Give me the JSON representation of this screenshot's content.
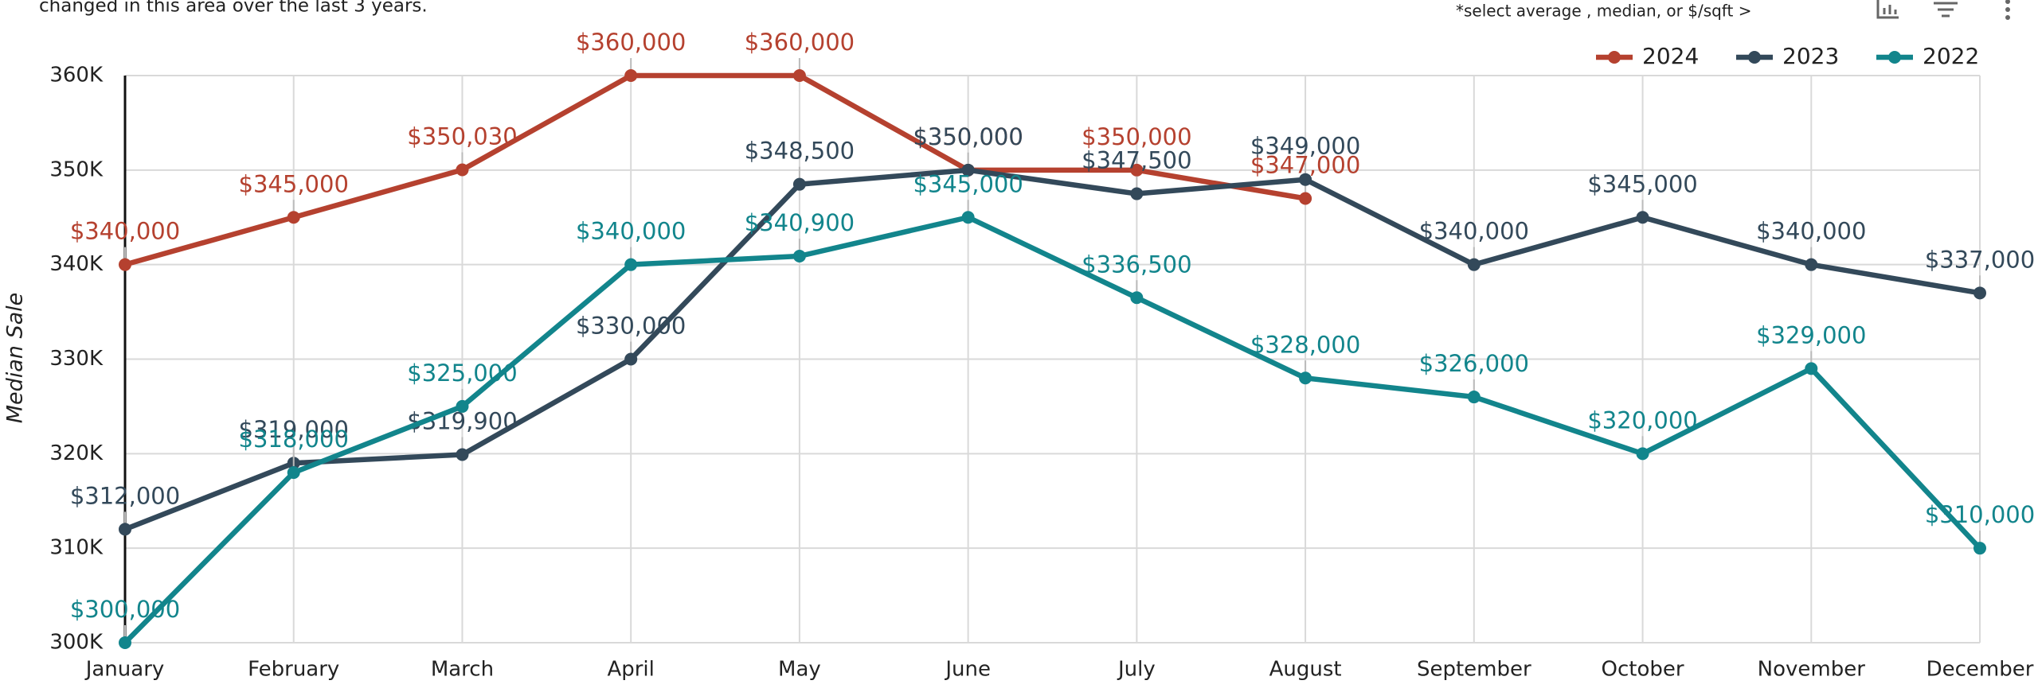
{
  "header": {
    "description": "changed in this area over the last 3 years.",
    "selector_hint": "*select average , median, or $/sqft  >"
  },
  "chart_data": {
    "type": "line",
    "y_label": "Median Sale",
    "categories": [
      "January",
      "February",
      "March",
      "April",
      "May",
      "June",
      "July",
      "August",
      "September",
      "October",
      "November",
      "December"
    ],
    "ylim": [
      300000,
      360000
    ],
    "yticks": [
      {
        "value": 300000,
        "label": "300K"
      },
      {
        "value": 310000,
        "label": "310K"
      },
      {
        "value": 320000,
        "label": "320K"
      },
      {
        "value": 330000,
        "label": "330K"
      },
      {
        "value": 340000,
        "label": "340K"
      },
      {
        "value": 350000,
        "label": "350K"
      },
      {
        "value": 360000,
        "label": "360K"
      }
    ],
    "grid": true,
    "legend": "top-right",
    "series": [
      {
        "name": "2024",
        "color": "#b5412f",
        "values": [
          340000,
          345000,
          350030,
          360000,
          360000,
          350000,
          350000,
          347000,
          null,
          null,
          null,
          null
        ],
        "value_labels": [
          "$340,000",
          "$345,000",
          "$350,030",
          "$360,000",
          "$360,000",
          "$350,000",
          "$350,000",
          "$347,000",
          null,
          null,
          null,
          null
        ]
      },
      {
        "name": "2023",
        "color": "#33495a",
        "values": [
          312000,
          319000,
          319900,
          330000,
          348500,
          350000,
          347500,
          349000,
          340000,
          345000,
          340000,
          337000
        ],
        "value_labels": [
          "$312,000",
          "$319,000",
          "$319,900",
          "$330,000",
          "$348,500",
          "$350,000",
          "$347,500",
          "$349,000",
          "$340,000",
          "$345,000",
          "$340,000",
          "$337,000"
        ]
      },
      {
        "name": "2022",
        "color": "#12858c",
        "values": [
          300000,
          318000,
          325000,
          340000,
          340900,
          345000,
          336500,
          328000,
          326000,
          320000,
          329000,
          310000
        ],
        "value_labels": [
          "$300,000",
          "$318,000",
          "$325,000",
          "$340,000",
          "$340,900",
          "$345,000",
          "$336,500",
          "$328,000",
          "$326,000",
          "$320,000",
          "$329,000",
          "$310,000"
        ]
      }
    ]
  }
}
